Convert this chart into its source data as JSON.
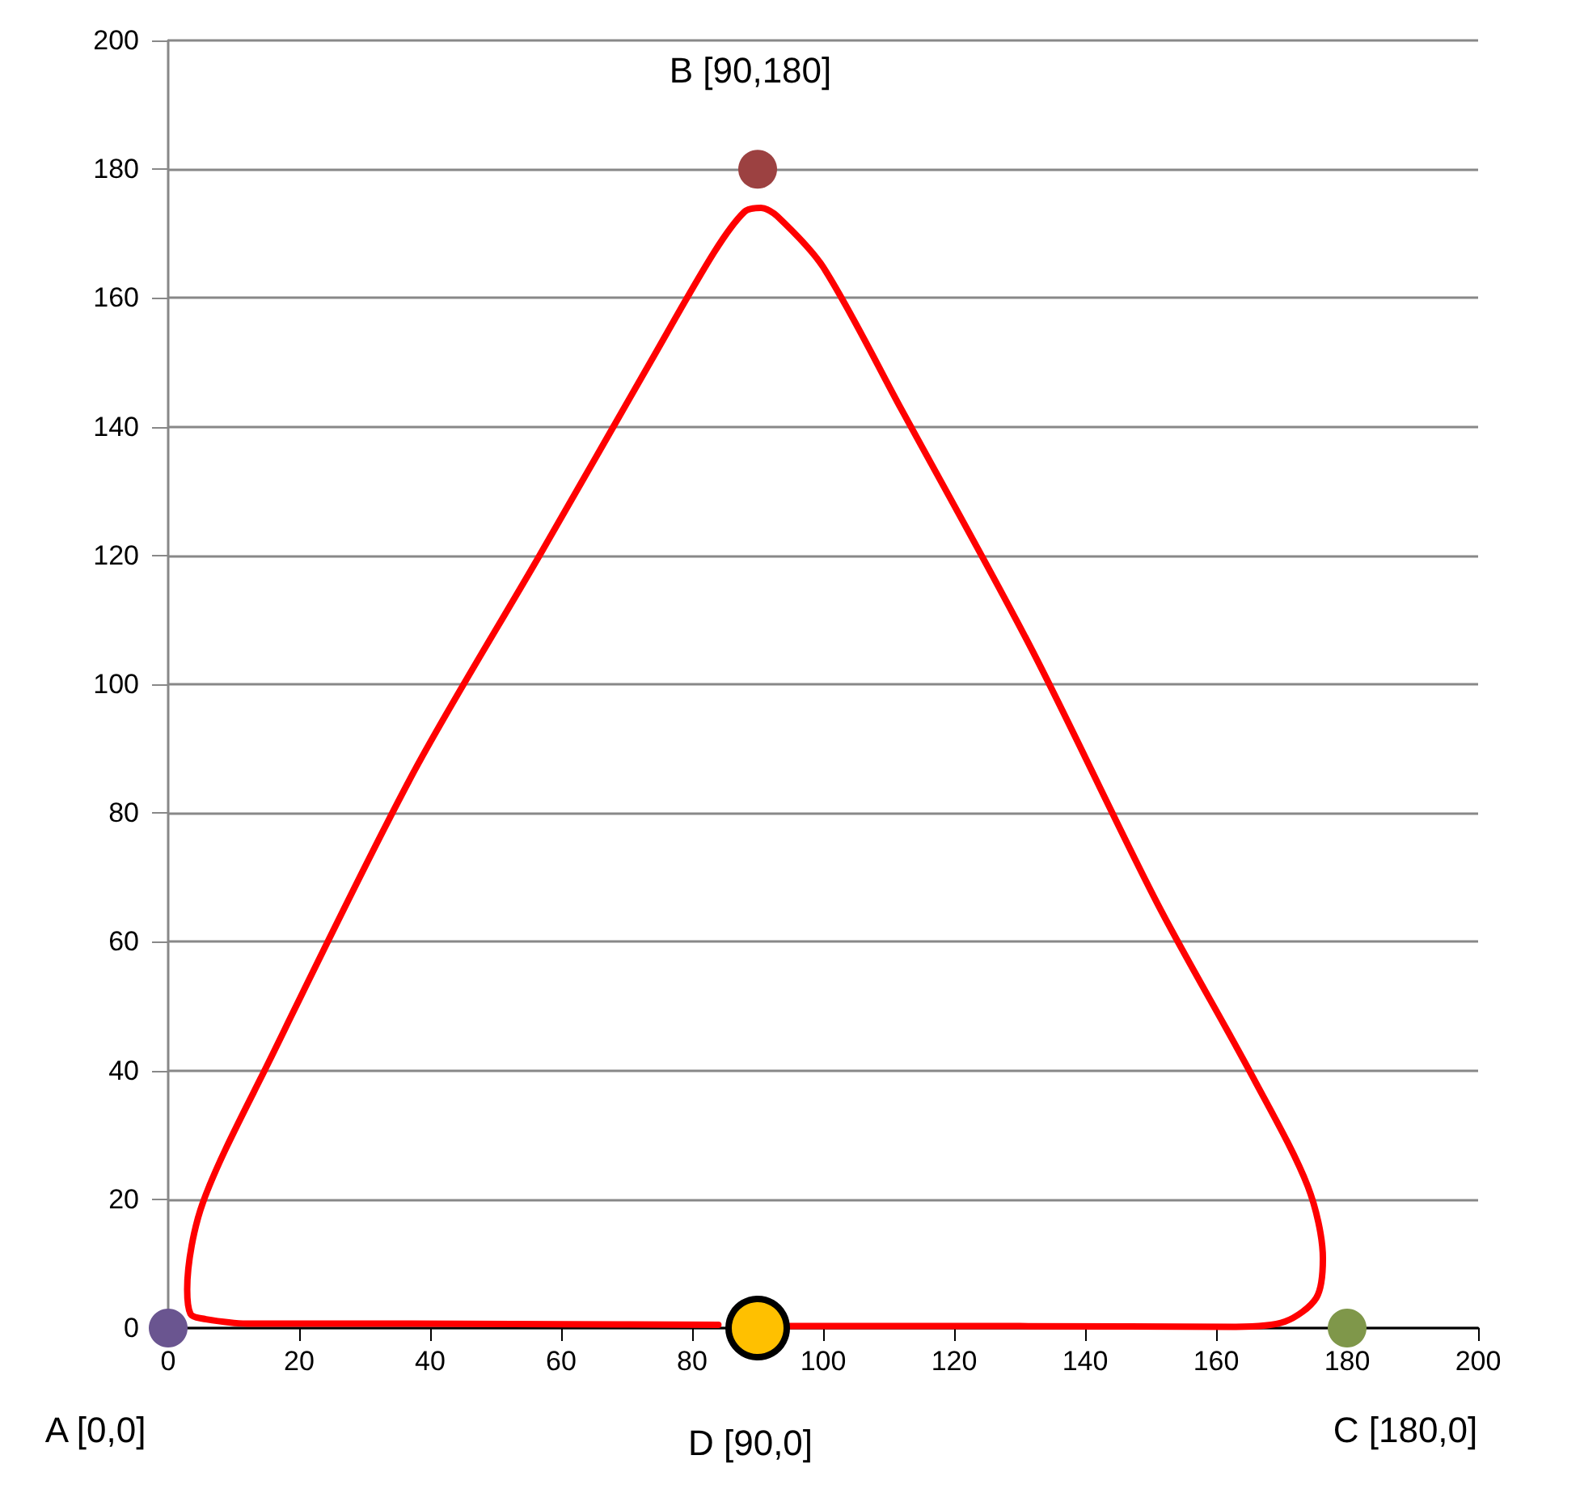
{
  "chart_data": {
    "type": "scatter",
    "xlim": [
      0,
      200
    ],
    "ylim": [
      0,
      200
    ],
    "xticks": [
      0,
      20,
      40,
      60,
      80,
      100,
      120,
      140,
      160,
      180,
      200
    ],
    "yticks": [
      0,
      20,
      40,
      60,
      80,
      100,
      120,
      140,
      160,
      180,
      200
    ],
    "grid": "y",
    "legend": false,
    "marker": "circle",
    "series": [
      {
        "type": "line",
        "color": "#ff0000",
        "marker": "none",
        "x": [
          84,
          60,
          30,
          12,
          5,
          3.4,
          2.9,
          5.3,
          15.5,
          37.3,
          56.7,
          73.6,
          83.3,
          88,
          90.5,
          93,
          100,
          112,
          131.7,
          151,
          165.6,
          174,
          176.3,
          175.3,
          170.5,
          163,
          130,
          95
        ],
        "values": [
          0.5,
          0.6,
          0.7,
          0.7,
          1.5,
          2.2,
          6,
          19.5,
          41.6,
          86,
          120,
          150,
          167,
          173.4,
          174,
          172.7,
          164.8,
          142.6,
          105.7,
          66,
          39,
          22,
          10.8,
          4.7,
          1,
          0.2,
          0.3,
          0.3
        ]
      },
      {
        "name": "A [0,0]",
        "color": "#6a5590",
        "x": [
          0
        ],
        "values": [
          0
        ]
      },
      {
        "name": "B [90,180]",
        "color": "#9c4141",
        "x": [
          90
        ],
        "values": [
          180
        ]
      },
      {
        "name": "C [180,0]",
        "color": "#7f974a",
        "x": [
          180
        ],
        "values": [
          0
        ]
      },
      {
        "name": "D [90,0]",
        "color": "#ffc000",
        "x": [
          90
        ],
        "values": [
          0
        ]
      }
    ]
  }
}
